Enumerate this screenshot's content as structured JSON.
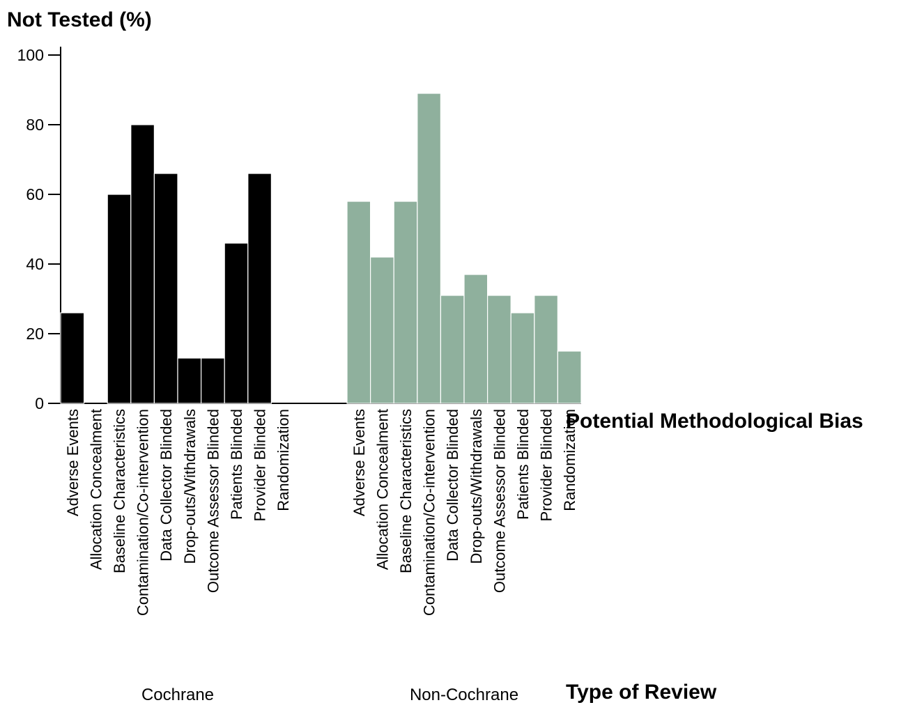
{
  "chart_data": {
    "type": "bar",
    "ylabel": "Not Tested (%)",
    "xlabel": "Potential Methodological Bias",
    "group_axis_label": "Type of Review",
    "ylim": [
      0,
      100
    ],
    "yticks": [
      "0",
      "20",
      "40",
      "60",
      "80",
      "100"
    ],
    "grid": false,
    "categories": [
      "Adverse Events",
      "Allocation Concealment",
      "Baseline Characteristics",
      "Contamination/Co-intervention",
      "Data Collector Blinded",
      "Drop-outs/Withdrawals",
      "Outcome Assessor Blinded",
      "Patients Blinded",
      "Provider Blinded",
      "Randomization"
    ],
    "series": [
      {
        "name": "Cochrane",
        "color": "#000000",
        "values": [
          26,
          0,
          60,
          80,
          66,
          13,
          13,
          46,
          66,
          0
        ]
      },
      {
        "name": "Non-Cochrane",
        "color": "#8fb09d",
        "values": [
          58,
          42,
          58,
          89,
          31,
          37,
          31,
          26,
          31,
          15
        ]
      }
    ]
  }
}
